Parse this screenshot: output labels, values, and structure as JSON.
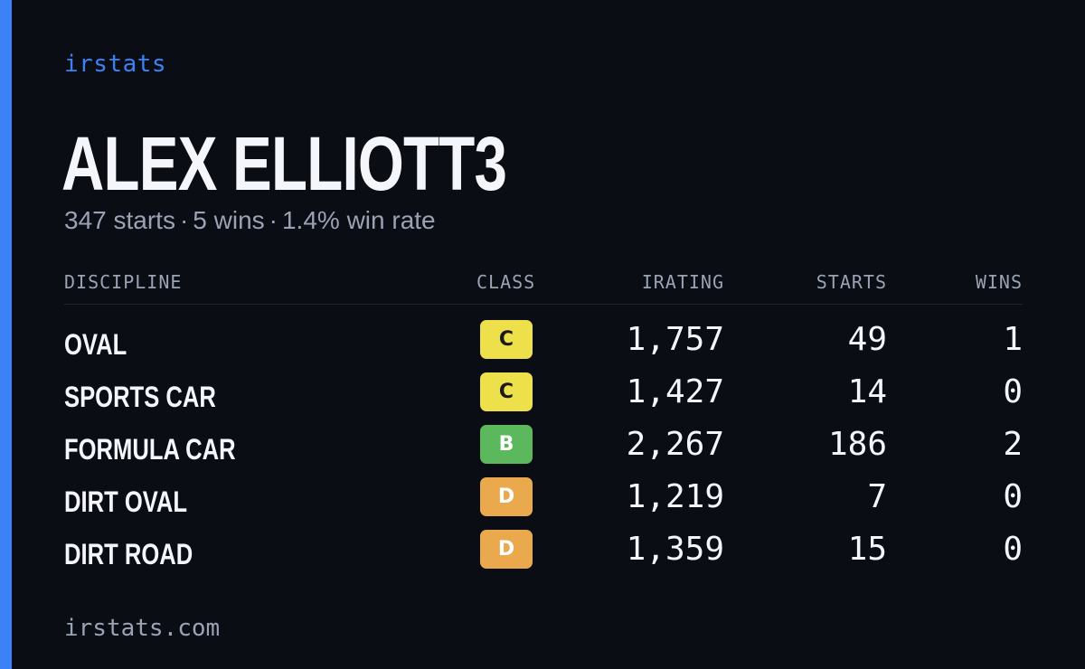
{
  "brand": "irstats",
  "driver": {
    "name": "ALEX ELLIOTT3",
    "starts_text": "347 starts",
    "wins_text": "5 wins",
    "winrate_text": "1.4% win rate",
    "separator": "·"
  },
  "table": {
    "headers": {
      "discipline": "DISCIPLINE",
      "class": "CLASS",
      "irating": "IRATING",
      "starts": "STARTS",
      "wins": "WINS"
    },
    "rows": [
      {
        "discipline": "OVAL",
        "class": "C",
        "irating": "1,757",
        "starts": "49",
        "wins": "1"
      },
      {
        "discipline": "SPORTS CAR",
        "class": "C",
        "irating": "1,427",
        "starts": "14",
        "wins": "0"
      },
      {
        "discipline": "FORMULA CAR",
        "class": "B",
        "irating": "2,267",
        "starts": "186",
        "wins": "2"
      },
      {
        "discipline": "DIRT OVAL",
        "class": "D",
        "irating": "1,219",
        "starts": "7",
        "wins": "0"
      },
      {
        "discipline": "DIRT ROAD",
        "class": "D",
        "irating": "1,359",
        "starts": "15",
        "wins": "0"
      }
    ]
  },
  "class_colors": {
    "B": {
      "bg": "#5cb85c",
      "fg": "#ffffff"
    },
    "C": {
      "bg": "#ede04a",
      "fg": "#1a1a1a"
    },
    "D": {
      "bg": "#e9a94c",
      "fg": "#ffffff"
    }
  },
  "colors": {
    "accent": "#3b82f6",
    "background": "#0a0d14",
    "muted_text": "#9aa2b4"
  },
  "footer": "irstats.com"
}
